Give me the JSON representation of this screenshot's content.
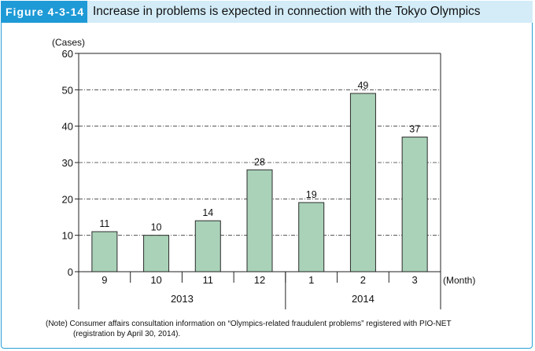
{
  "figure": {
    "label": "Figure 4-3-14",
    "title": "Increase in problems is expected in connection with the Tokyo Olympics"
  },
  "note": {
    "line1": "(Note) Consumer affairs consultation information on “Olympics-related fraudulent problems” registered with PIO-NET",
    "line2": "(registration by April 30, 2014)."
  },
  "colors": {
    "bar_fill": "#a9d2b8",
    "bar_stroke": "#2b2b2b",
    "accent": "#1e9ad6"
  },
  "chart_data": {
    "type": "bar",
    "categories": [
      "9",
      "10",
      "11",
      "12",
      "1",
      "2",
      "3"
    ],
    "values": [
      11,
      10,
      14,
      28,
      19,
      49,
      37
    ],
    "year_groups": [
      {
        "label": "2013",
        "categories": [
          "9",
          "10",
          "11",
          "12"
        ]
      },
      {
        "label": "2014",
        "categories": [
          "1",
          "2",
          "3"
        ]
      }
    ],
    "ylabel": "(Cases)",
    "xlabel": "(Month)",
    "ylim": [
      0,
      60
    ],
    "yticks": [
      0,
      10,
      20,
      30,
      40,
      50,
      60
    ],
    "grid": "dash-dot horizontal",
    "data_labels": true
  }
}
